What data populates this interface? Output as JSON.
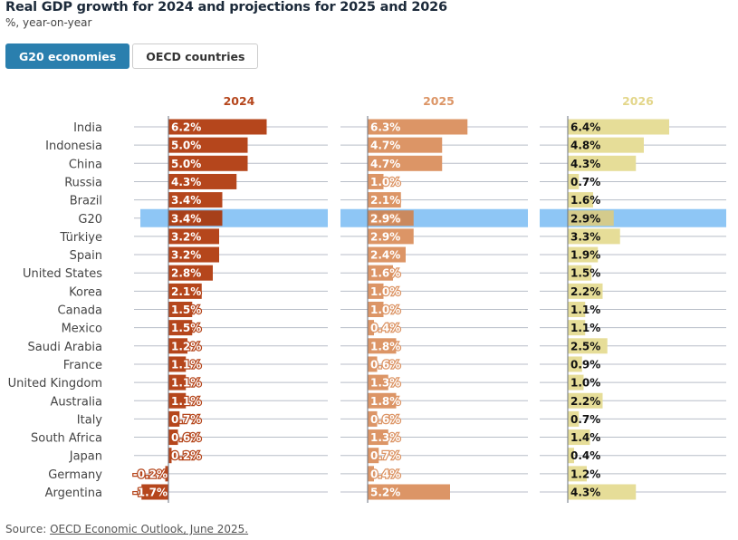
{
  "header": {
    "title": "Real GDP growth for 2024 and projections for 2025 and 2026",
    "subtitle": "%, year-on-year"
  },
  "tabs": [
    {
      "label": "G20 economies",
      "active": true
    },
    {
      "label": "OECD countries",
      "active": false
    }
  ],
  "chart_data": {
    "type": "bar",
    "orientation": "horizontal",
    "layout": "small-multiples",
    "highlighted_category": "G20",
    "highlight_color": "#8ec6f5",
    "categories": [
      "India",
      "Indonesia",
      "China",
      "Russia",
      "Brazil",
      "G20",
      "Türkiye",
      "Spain",
      "United States",
      "Korea",
      "Canada",
      "Mexico",
      "Saudi Arabia",
      "France",
      "United Kingdom",
      "Australia",
      "Italy",
      "South Africa",
      "Japan",
      "Germany",
      "Argentina"
    ],
    "series": [
      {
        "name": "2024",
        "color": "#b5461c",
        "label_color": "#ffffff",
        "values": [
          6.2,
          5.0,
          5.0,
          4.3,
          3.4,
          3.4,
          3.2,
          3.2,
          2.8,
          2.1,
          1.5,
          1.5,
          1.2,
          1.1,
          1.1,
          1.1,
          0.7,
          0.6,
          0.2,
          -0.2,
          -1.7
        ]
      },
      {
        "name": "2025",
        "color": "#dc9566",
        "label_color": "#ffffff",
        "values": [
          6.3,
          4.7,
          4.7,
          1.0,
          2.1,
          2.9,
          2.9,
          2.4,
          1.6,
          1.0,
          1.0,
          0.4,
          1.8,
          0.6,
          1.3,
          1.8,
          0.6,
          1.3,
          0.7,
          0.4,
          5.2
        ]
      },
      {
        "name": "2026",
        "color": "#e6dd98",
        "label_color": "#111111",
        "values": [
          6.4,
          4.8,
          4.3,
          0.7,
          1.6,
          2.9,
          3.3,
          1.9,
          1.5,
          2.2,
          1.1,
          1.1,
          2.5,
          0.9,
          1.0,
          2.2,
          0.7,
          1.4,
          0.4,
          1.2,
          4.3
        ]
      }
    ],
    "value_suffix": "%",
    "grid": true
  },
  "source": {
    "prefix": "Source: ",
    "link_text": "OECD Economic Outlook, June 2025."
  }
}
